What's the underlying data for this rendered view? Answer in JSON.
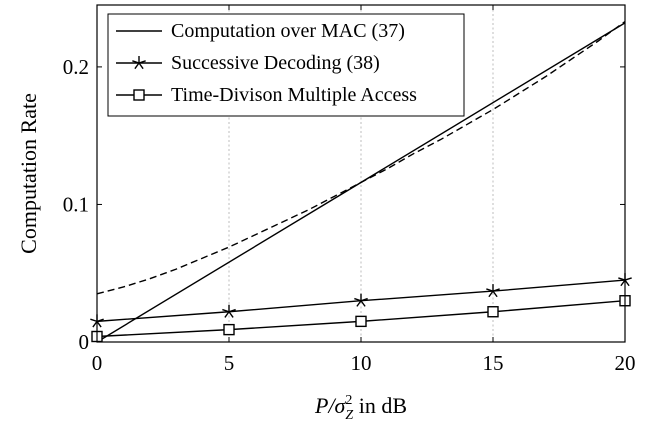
{
  "chart_data": {
    "type": "line",
    "xlabel_main": "P/σ",
    "xlabel_sup": "2",
    "xlabel_sub": "Z",
    "xlabel_tail": " in dB",
    "ylabel": "Computation Rate",
    "xlim": [
      0,
      20
    ],
    "ylim": [
      0,
      0.245
    ],
    "xticks": [
      0,
      5,
      10,
      15,
      20
    ],
    "xtick_labels": [
      "0",
      "5",
      "10",
      "15",
      "20"
    ],
    "yticks": [
      0,
      0.1,
      0.2
    ],
    "ytick_labels": [
      "0",
      "0.1",
      "0.2"
    ],
    "grid": "x-dotted",
    "legend_position": "top-left",
    "series": [
      {
        "name": "Computation over MAC (37)",
        "style": "solid",
        "marker": "none",
        "x": [
          0,
          20
        ],
        "y": [
          0.0,
          0.232
        ]
      },
      {
        "name": "Successive Decoding (38)",
        "style": "solid",
        "marker": "star",
        "x": [
          0,
          5,
          10,
          15,
          20
        ],
        "y": [
          0.015,
          0.022,
          0.03,
          0.037,
          0.045
        ]
      },
      {
        "name": "Time-Divison Multiple Access",
        "style": "solid",
        "marker": "square",
        "x": [
          0,
          5,
          10,
          15,
          20
        ],
        "y": [
          0.004,
          0.009,
          0.015,
          0.022,
          0.03
        ]
      },
      {
        "style": "dashed",
        "marker": "none",
        "x": [
          0,
          1,
          2,
          3,
          4,
          5,
          6,
          7,
          8,
          9,
          10,
          11,
          12,
          13,
          14,
          15,
          16,
          17,
          18,
          19,
          20
        ],
        "y": [
          0.035,
          0.04,
          0.046,
          0.053,
          0.061,
          0.069,
          0.078,
          0.087,
          0.096,
          0.106,
          0.116,
          0.126,
          0.137,
          0.147,
          0.158,
          0.169,
          0.181,
          0.193,
          0.206,
          0.219,
          0.233
        ]
      }
    ]
  }
}
